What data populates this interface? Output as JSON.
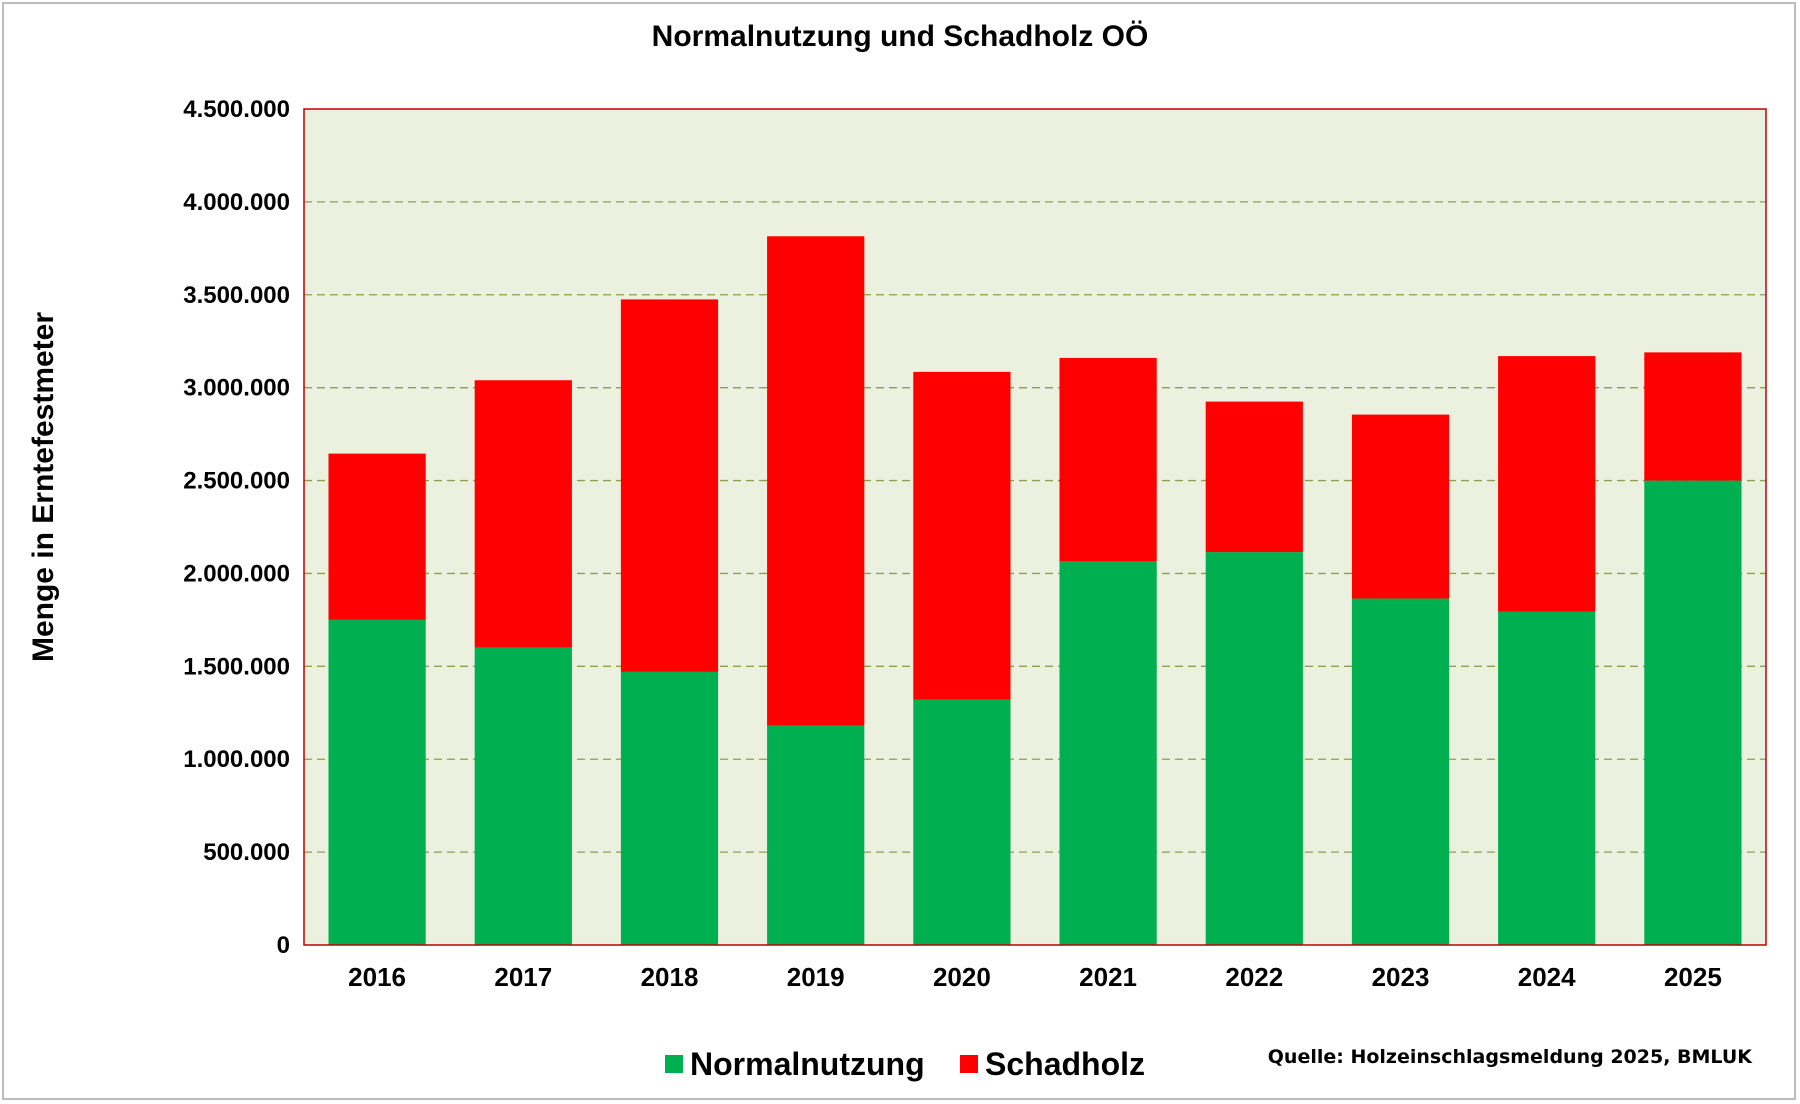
{
  "chart_data": {
    "type": "bar",
    "stacked": true,
    "title": "Normalnutzung und Schadholz OÖ",
    "ylabel": "Menge in Erntefestmeter",
    "xlabel": "",
    "categories": [
      "2016",
      "2017",
      "2018",
      "2019",
      "2020",
      "2021",
      "2022",
      "2023",
      "2024",
      "2025"
    ],
    "series": [
      {
        "name": "Normalnutzung",
        "color": "#00b050",
        "values": [
          1750000,
          1600000,
          1470000,
          1180000,
          1320000,
          2065000,
          2115000,
          1865000,
          1795000,
          2500000
        ]
      },
      {
        "name": "Schadholz",
        "color": "#ff0000",
        "values": [
          895000,
          1440000,
          2005000,
          2635000,
          1765000,
          1095000,
          810000,
          990000,
          1375000,
          690000
        ]
      }
    ],
    "ylim": [
      0,
      4500000
    ],
    "yticks": [
      0,
      500000,
      1000000,
      1500000,
      2000000,
      2500000,
      3000000,
      3500000,
      4000000,
      4500000
    ],
    "ytick_labels": [
      "0",
      "500.000",
      "1.000.000",
      "1.500.000",
      "2.000.000",
      "2.500.000",
      "3.000.000",
      "3.500.000",
      "4.000.000",
      "4.500.000"
    ],
    "grid": true,
    "legend_position": "bottom-center",
    "plot_background": "#ebf1de",
    "source_note": "Quelle: Holzeinschlagsmeldung 2025, BMLUK"
  }
}
